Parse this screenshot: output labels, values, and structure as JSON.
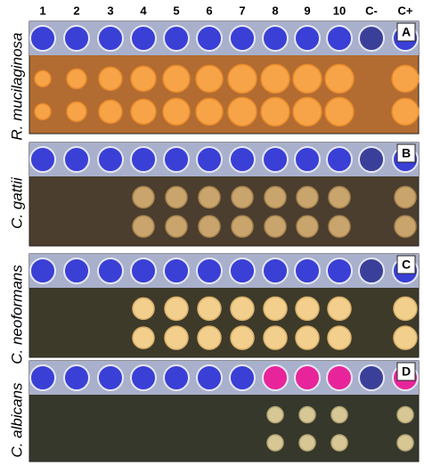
{
  "columns": [
    "1",
    "2",
    "3",
    "4",
    "5",
    "6",
    "7",
    "8",
    "9",
    "10",
    "C-",
    "C+"
  ],
  "panels": [
    {
      "label": "A",
      "organism": "R. mucilaginosa"
    },
    {
      "label": "B",
      "organism": "C. gattii"
    },
    {
      "label": "C",
      "organism": "C. neoformans"
    },
    {
      "label": "D",
      "organism": "C. albicans"
    }
  ]
}
